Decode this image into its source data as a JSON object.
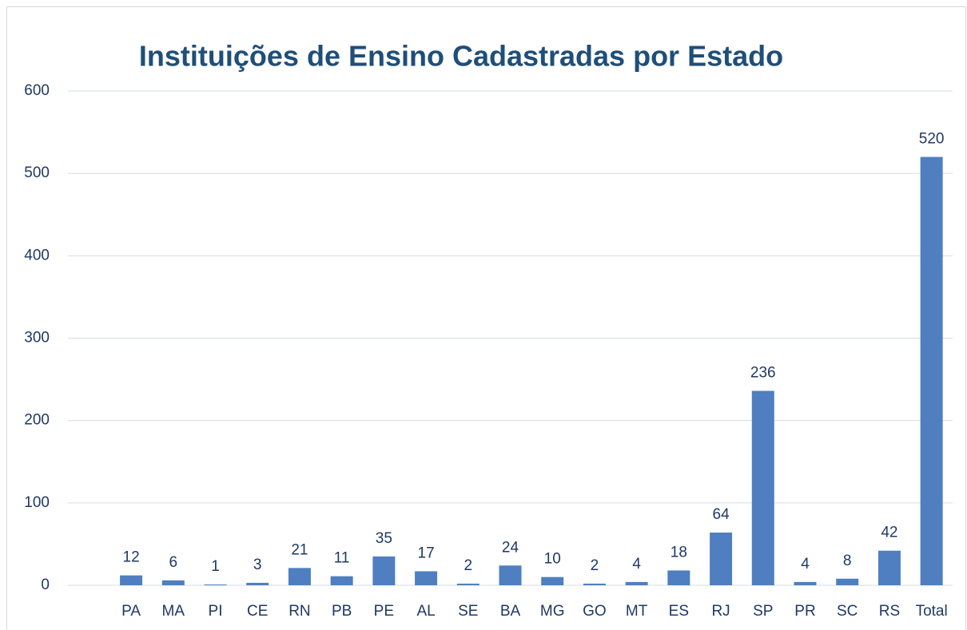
{
  "chart_data": {
    "type": "bar",
    "title": "Instituições de Ensino Cadastradas por Estado",
    "categories": [
      null,
      "PA",
      "MA",
      "PI",
      "CE",
      "RN",
      "PB",
      "PE",
      "AL",
      "SE",
      "BA",
      "MG",
      "GO",
      "MT",
      "ES",
      "RJ",
      "SP",
      "PR",
      "SC",
      "RS",
      "Total"
    ],
    "values": [
      null,
      12,
      6,
      1,
      3,
      21,
      11,
      35,
      17,
      2,
      24,
      10,
      2,
      4,
      18,
      64,
      236,
      4,
      8,
      42,
      520
    ],
    "color": "#4f7fc0",
    "ylim": [
      0,
      600
    ],
    "yticks": [
      0,
      100,
      200,
      300,
      400,
      500,
      600
    ],
    "grid": true
  }
}
